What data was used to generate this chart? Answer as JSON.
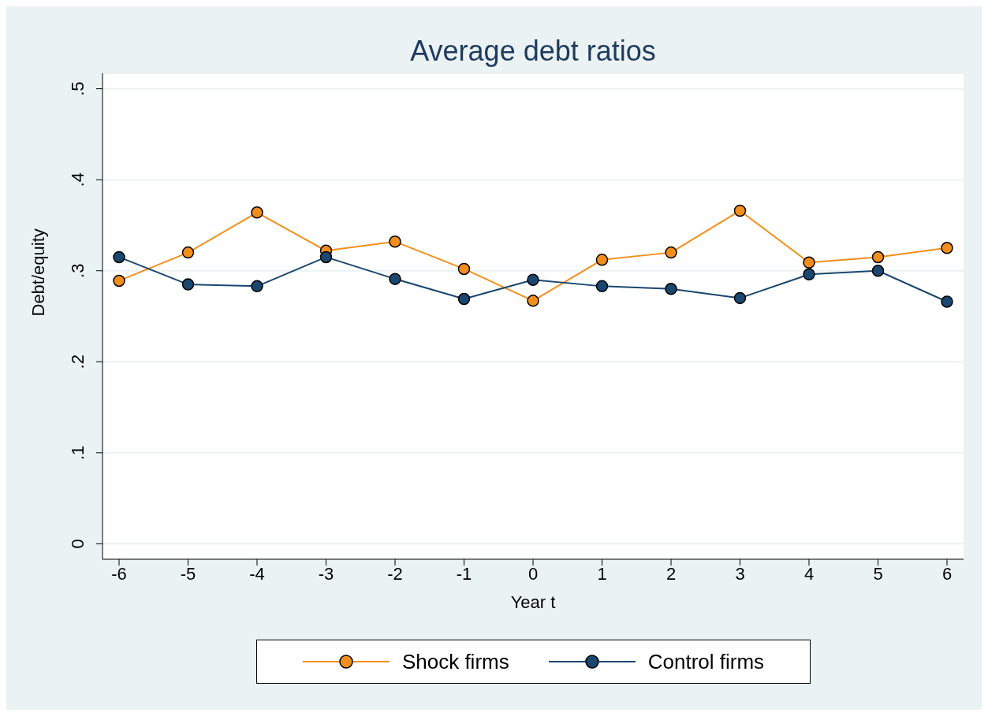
{
  "chart_data": {
    "type": "line",
    "title": "Average debt ratios",
    "xlabel": "Year t",
    "ylabel": "Debt/equity",
    "x": [
      -6,
      -5,
      -4,
      -3,
      -2,
      -1,
      0,
      1,
      2,
      3,
      4,
      5,
      6
    ],
    "series": [
      {
        "name": "Shock firms",
        "color": "#f28e1c",
        "values": [
          0.289,
          0.32,
          0.364,
          0.322,
          0.332,
          0.302,
          0.267,
          0.312,
          0.32,
          0.366,
          0.309,
          0.315,
          0.325
        ]
      },
      {
        "name": "Control firms",
        "color": "#1a476f",
        "values": [
          0.315,
          0.285,
          0.283,
          0.315,
          0.291,
          0.269,
          0.29,
          0.283,
          0.28,
          0.27,
          0.296,
          0.3,
          0.266
        ]
      }
    ],
    "xlim": [
      -6.24,
      6.24
    ],
    "xticks": [
      -6,
      -5,
      -4,
      -3,
      -2,
      -1,
      0,
      1,
      2,
      3,
      4,
      5,
      6
    ],
    "ylim": [
      -0.017,
      0.517
    ],
    "yticks": [
      {
        "value": 0,
        "label": "0"
      },
      {
        "value": 0.1,
        "label": ".1"
      },
      {
        "value": 0.2,
        "label": ".2"
      },
      {
        "value": 0.3,
        "label": ".3"
      },
      {
        "value": 0.4,
        "label": ".4"
      },
      {
        "value": 0.5,
        "label": ".5"
      }
    ],
    "grid": "y",
    "legend": "bottom",
    "marker": "circle"
  }
}
